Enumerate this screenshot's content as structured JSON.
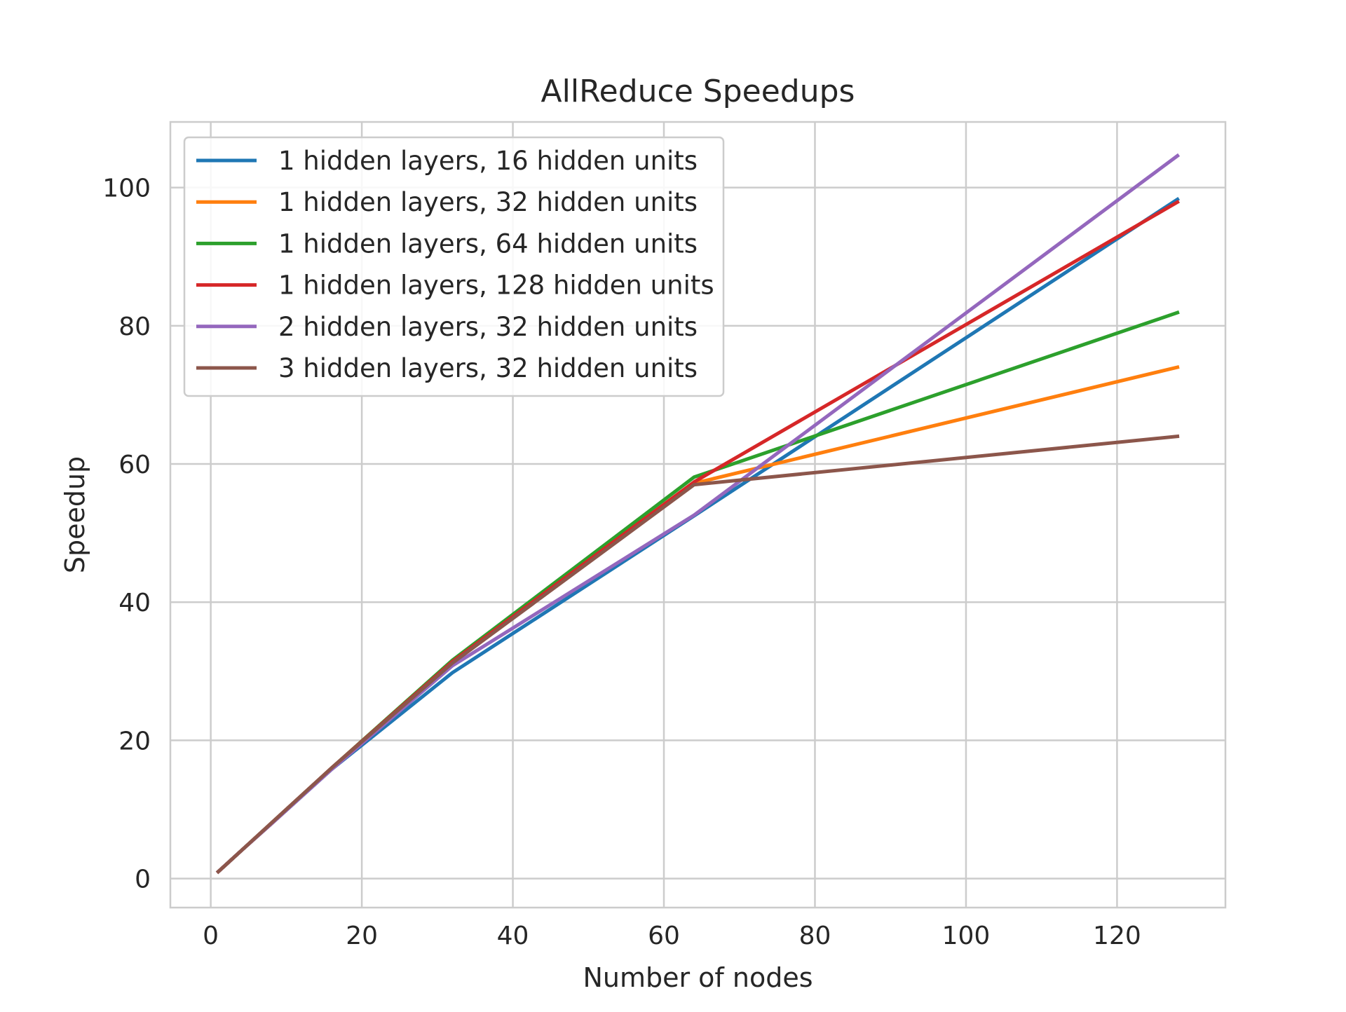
{
  "chart_data": {
    "type": "line",
    "title": "AllReduce Speedups",
    "xlabel": "Number of nodes",
    "ylabel": "Speedup",
    "xlim": [
      -5.35,
      134.35
    ],
    "ylim": [
      -4.2,
      109.5
    ],
    "xticks": [
      0,
      20,
      40,
      60,
      80,
      100,
      120
    ],
    "yticks": [
      0,
      20,
      40,
      60,
      80,
      100
    ],
    "grid": true,
    "legend_position": "top-left",
    "x": [
      1,
      2,
      4,
      8,
      16,
      32,
      64,
      128
    ],
    "series": [
      {
        "name": "1 hidden layers, 16 hidden units",
        "color": "#1f77b4",
        "values": [
          1,
          2,
          4,
          7.9,
          15.8,
          29.8,
          52.5,
          98.3
        ]
      },
      {
        "name": "1 hidden layers, 32 hidden units",
        "color": "#ff7f0e",
        "values": [
          1,
          2,
          4,
          7.9,
          15.9,
          31.2,
          57.2,
          74.0
        ]
      },
      {
        "name": "1 hidden layers, 64 hidden units",
        "color": "#2ca02c",
        "values": [
          1,
          2,
          4,
          8.0,
          16.0,
          31.6,
          58.1,
          81.9
        ]
      },
      {
        "name": "1 hidden layers, 128 hidden units",
        "color": "#d62728",
        "values": [
          1,
          2,
          4,
          8.0,
          16.0,
          31.4,
          57.4,
          97.9
        ]
      },
      {
        "name": "2 hidden layers, 32 hidden units",
        "color": "#9467bd",
        "values": [
          1,
          2,
          4,
          7.9,
          15.8,
          30.8,
          52.6,
          104.6
        ]
      },
      {
        "name": "3 hidden layers, 32 hidden units",
        "color": "#8c564b",
        "values": [
          1,
          2,
          4,
          8.0,
          16.0,
          31.2,
          57.0,
          64.0
        ]
      }
    ]
  }
}
